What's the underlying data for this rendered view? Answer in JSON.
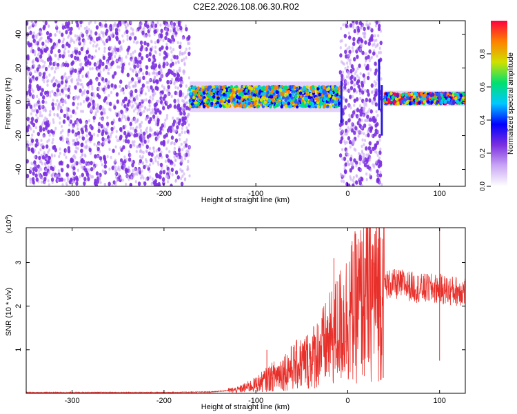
{
  "title": "C2E2.2026.108.06.30.R02",
  "colors": {
    "snr_line": "#e8302b",
    "spec_bg_dots": "#7b2fe0",
    "spec_bg_light": "#c9a6f5",
    "axis": "#000000",
    "grid": "#000000"
  },
  "chart_data": [
    {
      "type": "heatmap",
      "name": "spectrogram",
      "xlabel": "Height of straight line (km)",
      "ylabel": "Frequency (Hz)",
      "xlim": [
        -350,
        128
      ],
      "ylim": [
        -50,
        48
      ],
      "xticks": [
        -300,
        -200,
        -100,
        0,
        100
      ],
      "yticks": [
        -40,
        -20,
        0,
        20,
        40
      ],
      "colorbar": {
        "label": "Normalized spectral amplitude",
        "range": [
          0.0,
          1.0
        ],
        "ticks": [
          "0.0",
          "0.2",
          "0.4",
          "0.6",
          "0.8"
        ],
        "colormap": [
          "#ffffff",
          "#c9a6f5",
          "#7b2fe0",
          "#0000ff",
          "#00c8ff",
          "#00e070",
          "#d0e000",
          "#ff8000",
          "#ff0040"
        ]
      },
      "regions": [
        {
          "kind": "noise",
          "x": [
            -350,
            -172
          ],
          "freq": [
            -50,
            48
          ]
        },
        {
          "kind": "signal_band",
          "x": [
            -172,
            -8
          ],
          "center_hz": 3,
          "halfwidth_hz": 6
        },
        {
          "kind": "noise",
          "x": [
            -8,
            37
          ],
          "freq": [
            -50,
            48
          ]
        },
        {
          "kind": "signal_band",
          "x": [
            40,
            128
          ],
          "center_hz": 2,
          "halfwidth_hz": 3
        }
      ]
    },
    {
      "type": "line",
      "name": "snr",
      "xlabel": "Height of straight line (km)",
      "ylabel": "SNR (10 * v/v)",
      "ylabel_scale": "(x10",
      "ylabel_scale_exp": "4",
      "ylabel_scale_close": ")",
      "xlim": [
        -350,
        128
      ],
      "ylim": [
        0,
        3.8
      ],
      "xticks": [
        -300,
        -200,
        -100,
        0,
        100
      ],
      "yticks": [
        1,
        2,
        3
      ],
      "series": [
        {
          "x": [
            -350,
            -300,
            -250,
            -200,
            -150,
            -120,
            -100,
            -80,
            -60,
            -40,
            -20,
            0,
            20,
            40,
            60,
            80,
            100,
            110,
            120,
            128
          ],
          "y": [
            0.02,
            0.02,
            0.02,
            0.02,
            0.03,
            0.08,
            0.2,
            0.4,
            0.6,
            0.8,
            1.2,
            1.8,
            2.2,
            2.5,
            2.5,
            2.4,
            2.4,
            2.35,
            2.35,
            2.35
          ]
        }
      ],
      "spikes": [
        {
          "x": -88,
          "y": 1.0
        },
        {
          "x": -15,
          "y": 3.1
        },
        {
          "x": 38,
          "y": 3.1
        },
        {
          "x": 100,
          "y": 3.8
        },
        {
          "x": 100,
          "y": 0.75
        }
      ]
    }
  ]
}
